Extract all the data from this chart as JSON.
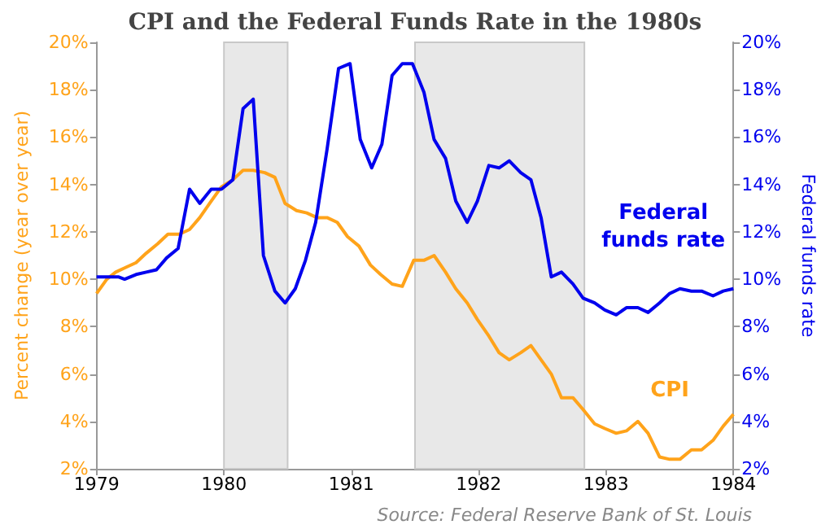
{
  "chart_data": {
    "type": "line",
    "title": "CPI and the Federal Funds Rate in the 1980s",
    "ylabel": "Percent change (year over year)",
    "y2label": "Federal funds rate",
    "annotations": [
      "Source: Federal Reserve Bank of St. Louis"
    ],
    "series": [
      {
        "name": "CPI",
        "color": "#ffa31a",
        "x": [
          1979.0,
          1979.08,
          1979.15,
          1979.23,
          1979.31,
          1979.39,
          1979.48,
          1979.56,
          1979.65,
          1979.73,
          1979.81,
          1979.9,
          1979.98,
          1980.07,
          1980.15,
          1980.23,
          1980.32,
          1980.4,
          1980.48,
          1980.57,
          1980.65,
          1980.73,
          1980.81,
          1980.89,
          1980.97,
          1981.06,
          1981.15,
          1981.23,
          1981.32,
          1981.4,
          1981.49,
          1981.57,
          1981.65,
          1981.74,
          1981.82,
          1981.91,
          1981.99,
          1982.08,
          1982.16,
          1982.24,
          1982.33,
          1982.41,
          1982.49,
          1982.57,
          1982.65,
          1982.74,
          1982.82,
          1982.91,
          1982.99,
          1983.08,
          1983.16,
          1983.25,
          1983.33,
          1983.42,
          1983.5,
          1983.58,
          1983.67,
          1983.75,
          1983.84,
          1983.92,
          1984.0
        ],
        "values": [
          9.4,
          10.0,
          10.3,
          10.5,
          10.7,
          11.1,
          11.5,
          11.9,
          11.9,
          12.1,
          12.6,
          13.3,
          13.9,
          14.2,
          14.6,
          14.6,
          14.5,
          14.3,
          13.2,
          12.9,
          12.8,
          12.6,
          12.6,
          12.4,
          11.8,
          11.4,
          10.6,
          10.2,
          9.8,
          9.7,
          10.8,
          10.8,
          11.0,
          10.3,
          9.6,
          9.0,
          8.3,
          7.6,
          6.9,
          6.6,
          6.9,
          7.2,
          6.6,
          6.0,
          5.0,
          5.0,
          4.5,
          3.9,
          3.7,
          3.5,
          3.6,
          4.0,
          3.5,
          2.5,
          2.4,
          2.4,
          2.8,
          2.8,
          3.2,
          3.8,
          4.3
        ]
      },
      {
        "name": "Federal funds rate",
        "color": "#0000ee",
        "axis": "y2",
        "x": [
          1979.0,
          1979.17,
          1979.22,
          1979.31,
          1979.39,
          1979.47,
          1979.55,
          1979.64,
          1979.73,
          1979.81,
          1979.9,
          1979.98,
          1980.07,
          1980.15,
          1980.23,
          1980.31,
          1980.4,
          1980.48,
          1980.56,
          1980.64,
          1980.72,
          1980.81,
          1980.9,
          1980.99,
          1981.07,
          1981.16,
          1981.24,
          1981.32,
          1981.4,
          1981.48,
          1981.57,
          1981.65,
          1981.74,
          1981.82,
          1981.91,
          1981.99,
          1982.08,
          1982.16,
          1982.24,
          1982.33,
          1982.41,
          1982.49,
          1982.57,
          1982.65,
          1982.74,
          1982.82,
          1982.91,
          1982.99,
          1983.08,
          1983.16,
          1983.25,
          1983.33,
          1983.42,
          1983.5,
          1983.58,
          1983.67,
          1983.75,
          1983.84,
          1983.92,
          1984.0
        ],
        "values": [
          10.1,
          10.1,
          10.0,
          10.2,
          10.3,
          10.4,
          10.9,
          11.3,
          13.8,
          13.2,
          13.8,
          13.8,
          14.2,
          17.2,
          17.6,
          11.0,
          9.5,
          9.0,
          9.6,
          10.8,
          12.4,
          15.5,
          18.9,
          19.1,
          15.9,
          14.7,
          15.7,
          18.6,
          19.1,
          19.1,
          17.9,
          15.9,
          15.1,
          13.3,
          12.4,
          13.3,
          14.8,
          14.7,
          15.0,
          14.5,
          14.2,
          12.6,
          10.1,
          10.3,
          9.8,
          9.2,
          9.0,
          8.7,
          8.5,
          8.8,
          8.8,
          8.6,
          9.0,
          9.4,
          9.6,
          9.5,
          9.5,
          9.3,
          9.5,
          9.6
        ]
      }
    ],
    "xlim": [
      1979,
      1984
    ],
    "xticks": [
      1979,
      1980,
      1981,
      1982,
      1983,
      1984
    ],
    "ylim": [
      2,
      20
    ],
    "yticks": [
      {
        "value": 2,
        "label": "2%"
      },
      {
        "value": 4,
        "label": "4%"
      },
      {
        "value": 6,
        "label": "6%"
      },
      {
        "value": 8,
        "label": "8%"
      },
      {
        "value": 10,
        "label": "10%"
      },
      {
        "value": 12,
        "label": "12%"
      },
      {
        "value": 14,
        "label": "14%"
      },
      {
        "value": 16,
        "label": "16%"
      },
      {
        "value": 18,
        "label": "18%"
      },
      {
        "value": 20,
        "label": "20%"
      }
    ],
    "y2lim": [
      2,
      20
    ],
    "y2ticks": [
      {
        "value": 2,
        "label": "2%"
      },
      {
        "value": 4,
        "label": "4%"
      },
      {
        "value": 6,
        "label": "6%"
      },
      {
        "value": 8,
        "label": "8%"
      },
      {
        "value": 10,
        "label": "10%"
      },
      {
        "value": 12,
        "label": "12%"
      },
      {
        "value": 14,
        "label": "14%"
      },
      {
        "value": 16,
        "label": "16%"
      },
      {
        "value": 18,
        "label": "18%"
      },
      {
        "value": 20,
        "label": "20%"
      }
    ],
    "bands": [
      {
        "axis": "x",
        "from": 1980.0,
        "to": 1980.5,
        "color": "#e8e8e8"
      },
      {
        "axis": "x",
        "from": 1981.5,
        "to": 1982.83,
        "color": "#e8e8e8"
      }
    ],
    "grid": false,
    "legend": false,
    "marker": "none",
    "line_style": "solid"
  }
}
